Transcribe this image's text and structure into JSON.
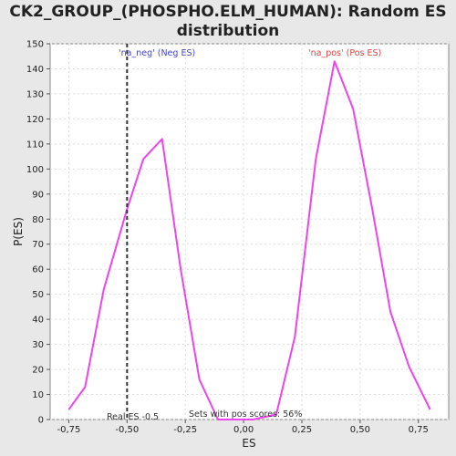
{
  "chart_data": {
    "type": "line",
    "title_line1": "CK2_GROUP_(PHOSPHO.ELM_HUMAN): Random ES",
    "title_line2": "distribution",
    "xlabel": "ES",
    "ylabel": "P(ES)",
    "xlim": [
      -0.83,
      0.88
    ],
    "ylim": [
      0,
      150
    ],
    "xticks": [
      -0.75,
      -0.5,
      -0.25,
      0.0,
      0.25,
      0.5,
      0.75
    ],
    "xtick_labels": [
      "-0,75",
      "-0,50",
      "-0,25",
      "0,00",
      "0,25",
      "0,50",
      "0,75"
    ],
    "yticks": [
      0,
      10,
      20,
      30,
      40,
      50,
      60,
      70,
      80,
      90,
      100,
      110,
      120,
      130,
      140,
      150
    ],
    "grid": true,
    "series": [
      {
        "color": "#ee44ee",
        "x": [
          -0.75,
          -0.68,
          -0.6,
          -0.5,
          -0.43,
          -0.35,
          -0.27,
          -0.19,
          -0.11,
          -0.04,
          0.04,
          0.14,
          0.22,
          0.31,
          0.39,
          0.47,
          0.55,
          0.63,
          0.71,
          0.8
        ],
        "y": [
          4,
          13,
          52,
          84,
          104,
          112,
          60,
          16,
          0,
          0,
          0,
          2,
          33,
          104,
          143,
          124,
          85,
          43,
          21,
          4
        ]
      }
    ],
    "real_es_line": {
      "x": -0.5,
      "label": "Real ES -0.5",
      "color": "#333333"
    },
    "annotations": {
      "neg_label": "'na_neg' (Neg ES)",
      "neg_color": "#4444cc",
      "pos_label": "'na_pos' (Pos ES)",
      "pos_color": "#dd4444",
      "sets_label": "Sets with pos scores: 56%"
    },
    "colors": {
      "plot_background": "#ffffff",
      "page_background": "#e8e8e8",
      "grid": "#dddddd"
    }
  }
}
